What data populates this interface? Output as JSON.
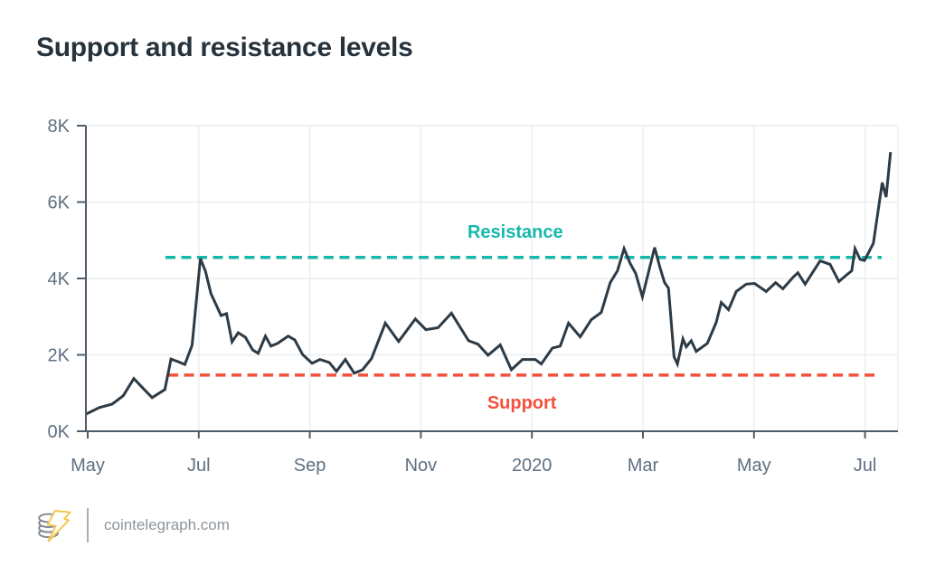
{
  "header": {
    "title": "Support and resistance levels"
  },
  "footer": {
    "site": "cointelegraph.com",
    "logo_icon": "cointelegraph-coin-lightning-icon"
  },
  "colors": {
    "title": "#27333c",
    "price_line": "#2d3b46",
    "resistance": "#16b8ab",
    "support": "#f4503d",
    "axis": "#4e5d68",
    "tick_text": "#5f7081",
    "gridline": "#eaedee",
    "footer_text": "#8d959b",
    "logo_gray": "#7f878e",
    "logo_yellow": "#f5c64f"
  },
  "chart_data": {
    "type": "line",
    "title": "Support and resistance levels",
    "x_axis": {
      "unit": "months since May 2019",
      "tick_positions": [
        0,
        2,
        4,
        6,
        8,
        10,
        12,
        14
      ],
      "tick_labels": [
        "May",
        "Jul",
        "Sep",
        "Nov",
        "2020",
        "Mar",
        "May",
        "Jul"
      ],
      "range": [
        -0.1,
        14.65
      ]
    },
    "y_axis": {
      "unit": "thousands",
      "tick_values": [
        0,
        2,
        4,
        6,
        8
      ],
      "tick_labels": [
        "0K",
        "2K",
        "4K",
        "6K",
        "8K"
      ],
      "range": [
        0,
        8
      ]
    },
    "grid": true,
    "legend": "none",
    "series": [
      {
        "name": "price",
        "points": [
          [
            -0.03,
            0.45
          ],
          [
            0.21,
            0.62
          ],
          [
            0.44,
            0.71
          ],
          [
            0.64,
            0.93
          ],
          [
            0.83,
            1.38
          ],
          [
            1.0,
            1.12
          ],
          [
            1.16,
            0.88
          ],
          [
            1.39,
            1.09
          ],
          [
            1.5,
            1.89
          ],
          [
            1.63,
            1.82
          ],
          [
            1.75,
            1.75
          ],
          [
            1.88,
            2.25
          ],
          [
            2.03,
            4.52
          ],
          [
            2.12,
            4.19
          ],
          [
            2.22,
            3.6
          ],
          [
            2.32,
            3.29
          ],
          [
            2.4,
            3.03
          ],
          [
            2.5,
            3.08
          ],
          [
            2.6,
            2.34
          ],
          [
            2.71,
            2.58
          ],
          [
            2.84,
            2.46
          ],
          [
            2.97,
            2.13
          ],
          [
            3.07,
            2.04
          ],
          [
            3.2,
            2.49
          ],
          [
            3.3,
            2.23
          ],
          [
            3.42,
            2.3
          ],
          [
            3.61,
            2.49
          ],
          [
            3.73,
            2.39
          ],
          [
            3.87,
            2.01
          ],
          [
            4.04,
            1.78
          ],
          [
            4.18,
            1.88
          ],
          [
            4.35,
            1.8
          ],
          [
            4.48,
            1.57
          ],
          [
            4.64,
            1.88
          ],
          [
            4.8,
            1.52
          ],
          [
            4.95,
            1.61
          ],
          [
            5.11,
            1.9
          ],
          [
            5.36,
            2.83
          ],
          [
            5.6,
            2.35
          ],
          [
            5.9,
            2.94
          ],
          [
            6.09,
            2.66
          ],
          [
            6.31,
            2.71
          ],
          [
            6.55,
            3.09
          ],
          [
            6.86,
            2.37
          ],
          [
            7.03,
            2.28
          ],
          [
            7.21,
            1.99
          ],
          [
            7.43,
            2.26
          ],
          [
            7.63,
            1.61
          ],
          [
            7.83,
            1.88
          ],
          [
            8.06,
            1.88
          ],
          [
            8.17,
            1.76
          ],
          [
            8.37,
            2.18
          ],
          [
            8.51,
            2.23
          ],
          [
            8.66,
            2.83
          ],
          [
            8.87,
            2.47
          ],
          [
            9.07,
            2.92
          ],
          [
            9.25,
            3.11
          ],
          [
            9.41,
            3.89
          ],
          [
            9.54,
            4.2
          ],
          [
            9.66,
            4.78
          ],
          [
            9.77,
            4.39
          ],
          [
            9.87,
            4.13
          ],
          [
            9.99,
            3.52
          ],
          [
            10.21,
            4.81
          ],
          [
            10.31,
            4.27
          ],
          [
            10.39,
            3.89
          ],
          [
            10.46,
            3.75
          ],
          [
            10.56,
            1.95
          ],
          [
            10.62,
            1.76
          ],
          [
            10.72,
            2.42
          ],
          [
            10.78,
            2.21
          ],
          [
            10.87,
            2.37
          ],
          [
            10.96,
            2.09
          ],
          [
            11.16,
            2.3
          ],
          [
            11.32,
            2.85
          ],
          [
            11.41,
            3.37
          ],
          [
            11.54,
            3.18
          ],
          [
            11.68,
            3.66
          ],
          [
            11.86,
            3.85
          ],
          [
            12.01,
            3.87
          ],
          [
            12.22,
            3.66
          ],
          [
            12.39,
            3.89
          ],
          [
            12.52,
            3.73
          ],
          [
            12.71,
            4.04
          ],
          [
            12.79,
            4.15
          ],
          [
            12.92,
            3.85
          ],
          [
            13.19,
            4.46
          ],
          [
            13.37,
            4.37
          ],
          [
            13.53,
            3.92
          ],
          [
            13.68,
            4.11
          ],
          [
            13.76,
            4.2
          ],
          [
            13.82,
            4.78
          ],
          [
            13.91,
            4.5
          ],
          [
            13.99,
            4.47
          ],
          [
            14.15,
            4.92
          ],
          [
            14.31,
            6.51
          ],
          [
            14.38,
            6.13
          ],
          [
            14.46,
            7.31
          ]
        ]
      }
    ],
    "levels": [
      {
        "name": "resistance",
        "label": "Resistance",
        "value": 4.55,
        "x_start": 1.4,
        "x_end": 14.3,
        "label_x": 7.7,
        "label_side": "above"
      },
      {
        "name": "support",
        "label": "Support",
        "value": 1.47,
        "x_start": 1.45,
        "x_end": 14.26,
        "label_x": 7.82,
        "label_side": "below"
      }
    ]
  }
}
